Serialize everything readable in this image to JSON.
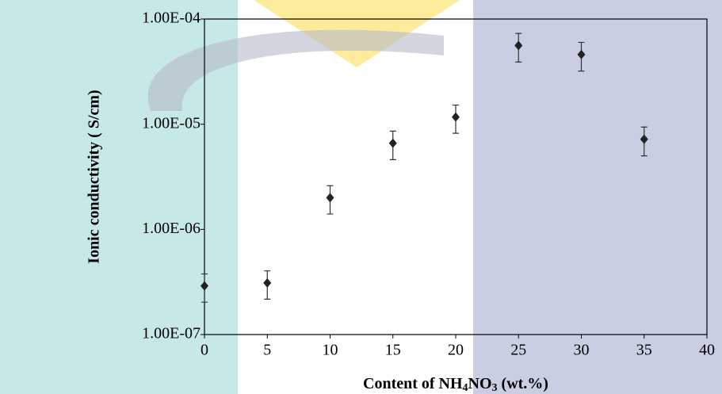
{
  "chart_data": {
    "type": "scatter",
    "ylabel": "Ionic conductivity ( S/cm)",
    "xlabel_parts": [
      "Content of NH",
      "4",
      "NO",
      "3",
      " (wt.%)"
    ],
    "series": [
      {
        "color": "#222222",
        "x": [
          0,
          5,
          10,
          15,
          20,
          25,
          30,
          35
        ],
        "values": [
          2.9e-07,
          3.1e-07,
          2e-06,
          6.6e-06,
          1.17e-05,
          5.6e-05,
          4.6e-05,
          7.2e-06
        ],
        "errors": [
          8.7e-08,
          9.3e-08,
          6e-07,
          2e-06,
          3.5e-06,
          1.7e-05,
          1.4e-05,
          2.2e-06
        ]
      }
    ],
    "log_y": true,
    "xlim": [
      0,
      40
    ],
    "xticks": [
      0,
      5,
      10,
      15,
      20,
      25,
      30,
      35,
      40
    ],
    "ylim": [
      1e-07,
      0.0001
    ],
    "yticks": [
      {
        "value": 1e-07,
        "label": "1.00E-07"
      },
      {
        "value": 1e-06,
        "label": "1.00E-06"
      },
      {
        "value": 1e-05,
        "label": "1.00E-05"
      },
      {
        "value": 0.0001,
        "label": "1.00E-04"
      }
    ]
  }
}
